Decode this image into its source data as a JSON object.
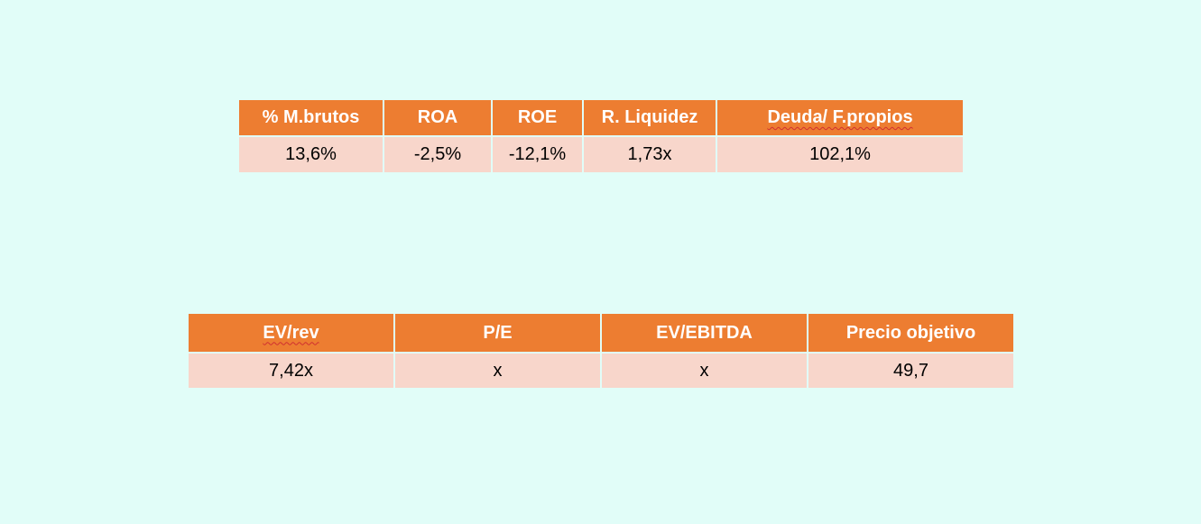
{
  "ratios_table": {
    "headers": [
      "% M.brutos",
      "ROA",
      "ROE",
      "R. Liquidez",
      "Deuda/ F.propios"
    ],
    "values": [
      "13,6%",
      "-2,5%",
      "-12,1%",
      "1,73x",
      "102,1%"
    ]
  },
  "valuation_table": {
    "headers": [
      "EV/rev",
      "P/E",
      "EV/EBITDA",
      "Precio objetivo"
    ],
    "values": [
      "7,42x",
      "x",
      "x",
      "49,7"
    ]
  },
  "colors": {
    "background": "#e1fdf8",
    "header_fill": "#ed7d31",
    "cell_fill": "#f8d6cb"
  }
}
